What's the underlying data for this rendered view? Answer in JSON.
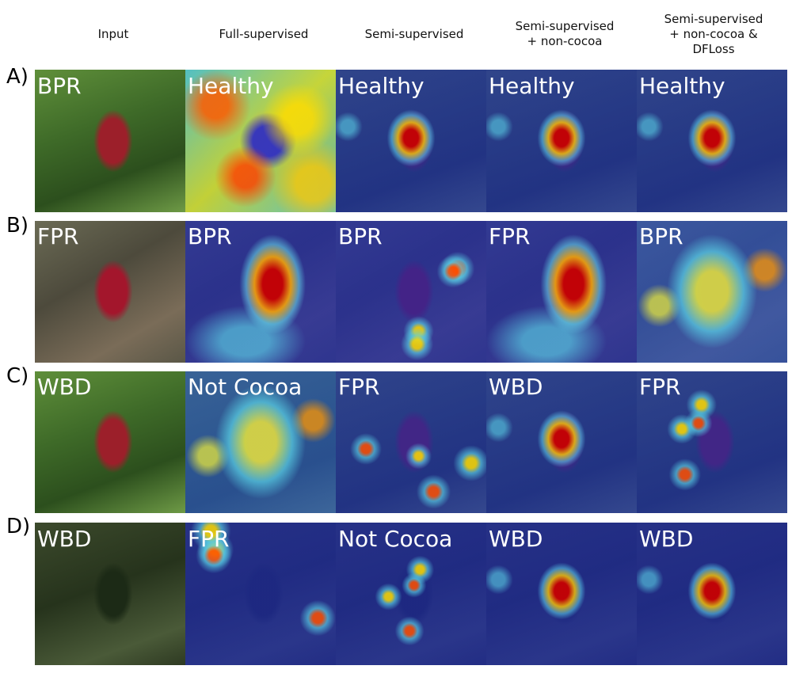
{
  "columns": [
    {
      "lines": [
        "Input"
      ]
    },
    {
      "lines": [
        "Full-supervised"
      ]
    },
    {
      "lines": [
        "Semi-supervised"
      ]
    },
    {
      "lines": [
        "Semi-supervised",
        "+ non-cocoa"
      ]
    },
    {
      "lines": [
        "Semi-supervised",
        "+ non-cocoa &",
        "DFLoss"
      ]
    }
  ],
  "rows": [
    {
      "id": "A)",
      "tags": [
        "BPR",
        "Healthy",
        "Healthy",
        "Healthy",
        "Healthy"
      ],
      "scene": "green",
      "heat": [
        "none",
        "full",
        "spot",
        "spot",
        "spot"
      ]
    },
    {
      "id": "B)",
      "tags": [
        "FPR",
        "BPR",
        "BPR",
        "FPR",
        "BPR"
      ],
      "scene": "brown",
      "heat": [
        "none",
        "pod",
        "scatter",
        "pod",
        "wide"
      ]
    },
    {
      "id": "C)",
      "tags": [
        "WBD",
        "Not Cocoa",
        "FPR",
        "WBD",
        "FPR"
      ],
      "scene": "green",
      "heat": [
        "none",
        "wide",
        "scatter",
        "spot",
        "scatter"
      ]
    },
    {
      "id": "D)",
      "tags": [
        "WBD",
        "FPR",
        "Not Cocoa",
        "WBD",
        "WBD"
      ],
      "scene": "dark",
      "heat": [
        "none",
        "scatter",
        "scatter",
        "spot",
        "spot"
      ]
    }
  ]
}
